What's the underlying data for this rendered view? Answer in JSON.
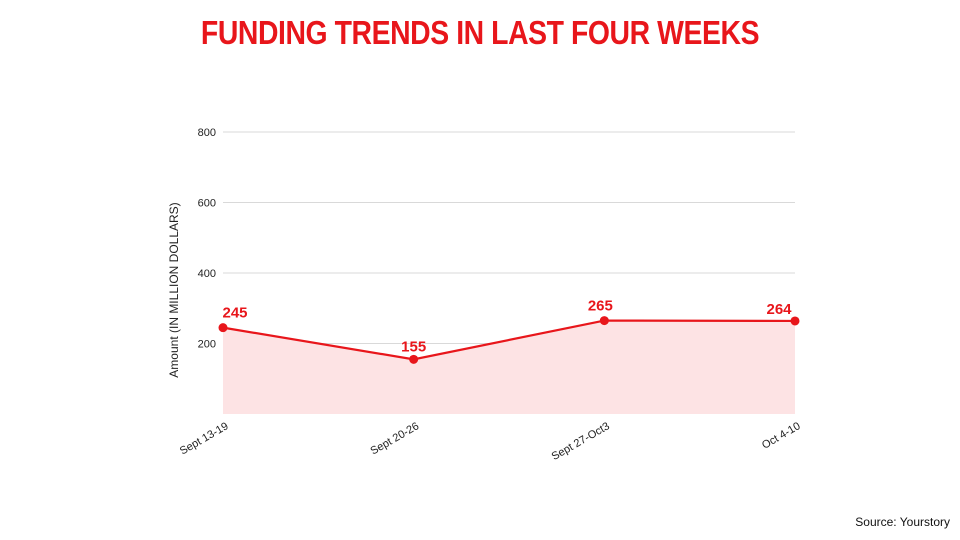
{
  "title": "FUNDING TRENDS IN LAST FOUR WEEKS",
  "source": "Source: Yourstory",
  "colors": {
    "accent": "#e8161b",
    "fill": "#fde3e4",
    "grid": "#d9d9d9"
  },
  "chart_data": {
    "type": "area",
    "categories": [
      "Sept 13-19",
      "Sept 20-26",
      "Sept 27-Oct3",
      "Oct 4-10"
    ],
    "values": [
      245,
      155,
      265,
      264
    ],
    "title": "FUNDING TRENDS IN LAST FOUR WEEKS",
    "xlabel": "",
    "ylabel": "Amount (IN MILLION DOLLARS)",
    "yticks": [
      200,
      400,
      600,
      800
    ],
    "ylim": [
      0,
      800
    ],
    "grid": true,
    "legend": "none"
  }
}
